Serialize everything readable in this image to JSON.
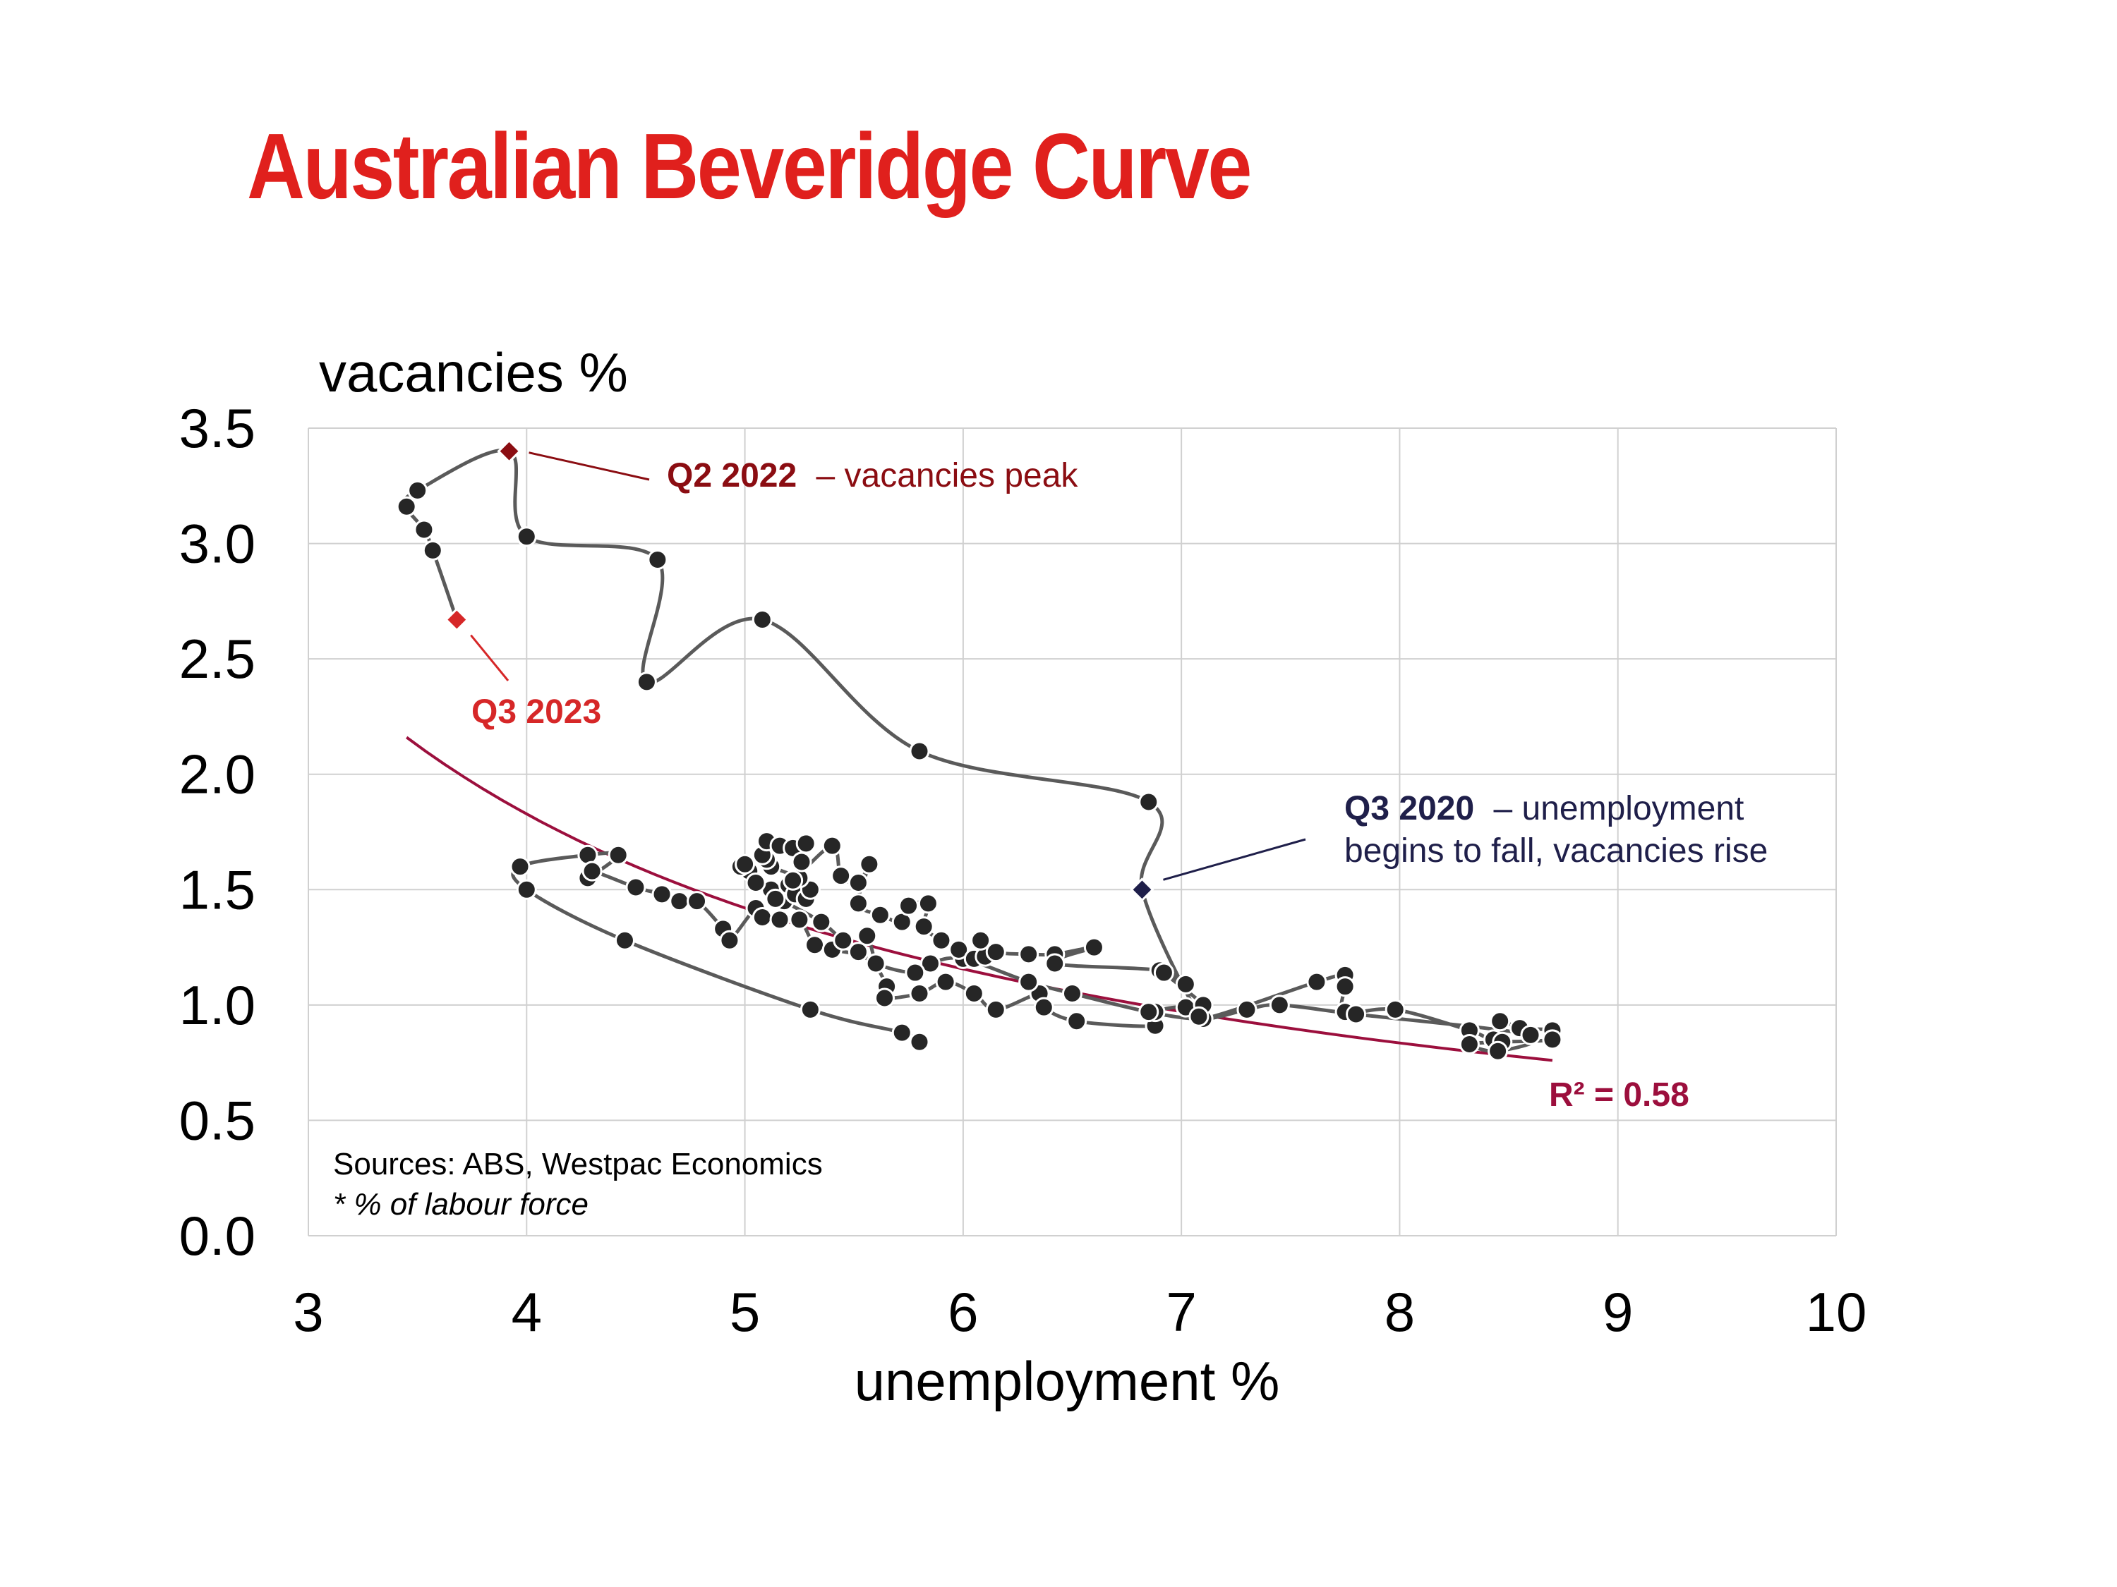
{
  "title": "Australian Beveridge Curve",
  "colors": {
    "title": "#e0201d",
    "trend": "#9c0f3d",
    "peak": "#8b0d12",
    "recent": "#d62728",
    "q3_2020": "#1f1f4a",
    "dots": "#262626",
    "path": "#5a5a5a",
    "grid": "#d0d0d0"
  },
  "chart_data": {
    "type": "scatter",
    "title": "Australian Beveridge Curve",
    "xlabel": "unemployment %",
    "ylabel": "vacancies %",
    "xlim": [
      3,
      10
    ],
    "ylim": [
      0,
      3.5
    ],
    "xticks": [
      "3",
      "4",
      "5",
      "6",
      "7",
      "8",
      "9",
      "10"
    ],
    "yticks": [
      "0.0",
      "0.5",
      "1.0",
      "1.5",
      "2.0",
      "2.5",
      "3.0",
      "3.5"
    ],
    "grid": true,
    "trendline": {
      "type": "power",
      "x_range": [
        3.45,
        8.7
      ],
      "y_start": 2.16,
      "y_end": 0.76,
      "label": "R² = 0.58"
    },
    "connected_path": [
      [
        5.8,
        0.84
      ],
      [
        5.72,
        0.88
      ],
      [
        5.3,
        0.98
      ],
      [
        4.45,
        1.28
      ],
      [
        4.0,
        1.5
      ],
      [
        3.97,
        1.6
      ],
      [
        4.28,
        1.65
      ],
      [
        4.42,
        1.65
      ],
      [
        4.28,
        1.55
      ],
      [
        4.3,
        1.58
      ],
      [
        4.5,
        1.51
      ],
      [
        4.62,
        1.48
      ],
      [
        4.7,
        1.45
      ],
      [
        4.78,
        1.45
      ],
      [
        4.9,
        1.33
      ],
      [
        4.93,
        1.28
      ],
      [
        5.05,
        1.42
      ],
      [
        5.08,
        1.38
      ],
      [
        5.16,
        1.37
      ],
      [
        5.25,
        1.37
      ],
      [
        5.32,
        1.26
      ],
      [
        5.4,
        1.24
      ],
      [
        5.52,
        1.23
      ],
      [
        5.56,
        1.3
      ],
      [
        5.6,
        1.18
      ],
      [
        5.65,
        1.08
      ],
      [
        5.64,
        1.03
      ],
      [
        5.8,
        1.05
      ],
      [
        5.92,
        1.1
      ],
      [
        6.05,
        1.05
      ],
      [
        6.15,
        0.98
      ],
      [
        6.35,
        1.05
      ],
      [
        6.37,
        0.99
      ],
      [
        6.52,
        0.93
      ],
      [
        6.88,
        0.91
      ],
      [
        6.88,
        0.97
      ],
      [
        7.02,
        0.99
      ],
      [
        7.1,
        0.94
      ],
      [
        7.62,
        1.1
      ],
      [
        7.75,
        1.13
      ],
      [
        7.75,
        1.08
      ],
      [
        7.75,
        0.97
      ],
      [
        7.98,
        0.98
      ],
      [
        8.32,
        0.89
      ],
      [
        8.43,
        0.85
      ],
      [
        8.46,
        0.93
      ],
      [
        8.55,
        0.9
      ],
      [
        8.7,
        0.89
      ],
      [
        8.7,
        0.85
      ],
      [
        8.47,
        0.84
      ],
      [
        8.32,
        0.83
      ],
      [
        8.45,
        0.8
      ],
      [
        8.6,
        0.87
      ],
      [
        7.8,
        0.96
      ],
      [
        7.45,
        1.0
      ],
      [
        7.3,
        0.98
      ],
      [
        7.1,
        0.94
      ],
      [
        6.85,
        0.97
      ],
      [
        6.5,
        1.05
      ],
      [
        6.3,
        1.1
      ],
      [
        6.0,
        1.2
      ],
      [
        5.85,
        1.18
      ],
      [
        5.78,
        1.14
      ],
      [
        5.6,
        1.18
      ],
      [
        5.45,
        1.28
      ],
      [
        5.35,
        1.36
      ],
      [
        5.18,
        1.45
      ],
      [
        5.12,
        1.5
      ],
      [
        5.02,
        1.58
      ],
      [
        4.98,
        1.6
      ],
      [
        5.0,
        1.61
      ],
      [
        5.05,
        1.53
      ],
      [
        5.14,
        1.46
      ],
      [
        5.2,
        1.52
      ],
      [
        5.23,
        1.48
      ],
      [
        5.28,
        1.46
      ],
      [
        5.3,
        1.5
      ],
      [
        5.25,
        1.55
      ],
      [
        5.12,
        1.6
      ],
      [
        5.1,
        1.63
      ],
      [
        5.08,
        1.65
      ],
      [
        5.1,
        1.71
      ],
      [
        5.16,
        1.69
      ],
      [
        5.22,
        1.68
      ],
      [
        5.28,
        1.7
      ],
      [
        5.26,
        1.62
      ],
      [
        5.22,
        1.54
      ],
      [
        5.4,
        1.69
      ],
      [
        5.44,
        1.56
      ],
      [
        5.52,
        1.53
      ],
      [
        5.57,
        1.61
      ],
      [
        5.52,
        1.44
      ],
      [
        5.62,
        1.39
      ],
      [
        5.72,
        1.36
      ],
      [
        5.75,
        1.43
      ],
      [
        5.84,
        1.44
      ],
      [
        5.82,
        1.34
      ],
      [
        5.9,
        1.28
      ],
      [
        5.98,
        1.24
      ],
      [
        6.05,
        1.2
      ],
      [
        6.1,
        1.21
      ],
      [
        6.08,
        1.28
      ],
      [
        6.15,
        1.23
      ],
      [
        6.3,
        1.22
      ],
      [
        6.42,
        1.22
      ],
      [
        6.6,
        1.25
      ],
      [
        6.42,
        1.18
      ],
      [
        6.9,
        1.15
      ],
      [
        7.02,
        1.09
      ],
      [
        6.92,
        1.14
      ],
      [
        7.1,
        1.0
      ],
      [
        7.08,
        0.95
      ],
      [
        6.82,
        1.5
      ],
      [
        6.85,
        1.88
      ],
      [
        5.8,
        2.1
      ],
      [
        5.08,
        2.67
      ],
      [
        4.55,
        2.4
      ],
      [
        4.6,
        2.93
      ],
      [
        4.0,
        3.03
      ],
      [
        3.92,
        3.4
      ],
      [
        3.5,
        3.23
      ],
      [
        3.45,
        3.16
      ],
      [
        3.53,
        3.06
      ],
      [
        3.57,
        2.97
      ],
      [
        3.68,
        2.67
      ]
    ],
    "highlighted_points": [
      {
        "label": "Q2 2022",
        "text": "– vacancies peak",
        "x": 3.92,
        "y": 3.4
      },
      {
        "label": "Q3 2023",
        "text": "",
        "x": 3.68,
        "y": 2.67
      },
      {
        "label": "Q3 2020",
        "text": "– unemployment",
        "text2": "begins to fall, vacancies rise",
        "x": 6.82,
        "y": 1.5
      }
    ]
  },
  "sources": "Sources: ABS, Westpac Economics",
  "footnote": "* % of labour force"
}
